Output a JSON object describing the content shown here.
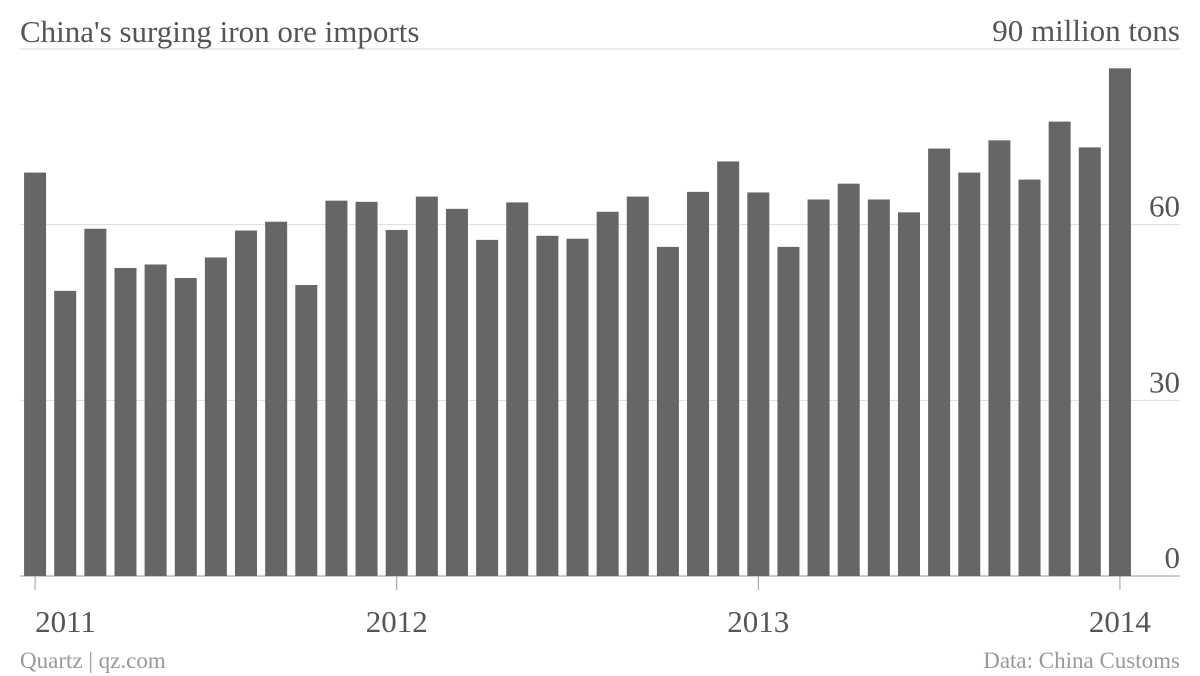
{
  "chart_data": {
    "type": "bar",
    "title": "China's surging iron ore imports",
    "source": "Data: China Customs",
    "credit": "Quartz | qz.com",
    "categories": [
      "2011",
      null,
      null,
      null,
      null,
      null,
      null,
      null,
      null,
      null,
      null,
      null,
      "2012",
      null,
      null,
      null,
      null,
      null,
      null,
      null,
      null,
      null,
      null,
      null,
      "2013",
      null,
      null,
      null,
      null,
      null,
      null,
      null,
      null,
      null,
      null,
      null,
      "2014"
    ],
    "values": [
      68.9,
      48.7,
      59.3,
      52.6,
      53.2,
      50.9,
      54.4,
      59.0,
      60.5,
      49.7,
      64.1,
      63.9,
      59.1,
      64.8,
      62.7,
      57.4,
      63.8,
      58.1,
      57.6,
      62.2,
      64.8,
      56.2,
      65.6,
      70.8,
      65.5,
      56.2,
      64.3,
      67.0,
      64.3,
      62.1,
      73.0,
      68.9,
      74.4,
      67.7,
      77.6,
      73.2,
      86.7
    ],
    "color": "#666666",
    "ylim": [
      0,
      90
    ],
    "yticks": [
      0,
      30,
      60,
      {
        "value": 90,
        "label": "90 million tons"
      }
    ],
    "grid": true
  }
}
